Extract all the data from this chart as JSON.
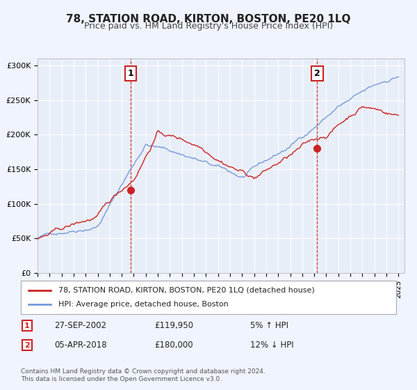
{
  "title": "78, STATION ROAD, KIRTON, BOSTON, PE20 1LQ",
  "subtitle": "Price paid vs. HM Land Registry's House Price Index (HPI)",
  "title_fontsize": 11,
  "subtitle_fontsize": 9,
  "bg_color": "#f0f4ff",
  "plot_bg_color": "#e8eef8",
  "line1_color": "#cc2222",
  "line2_color": "#7799dd",
  "line1_label": "78, STATION ROAD, KIRTON, BOSTON, PE20 1LQ (detached house)",
  "line2_label": "HPI: Average price, detached house, Boston",
  "ylim": [
    0,
    310000
  ],
  "yticks": [
    0,
    50000,
    100000,
    150000,
    200000,
    250000,
    300000
  ],
  "ytick_labels": [
    "£0",
    "£50K",
    "£100K",
    "£150K",
    "£200K",
    "£250K",
    "£300K"
  ],
  "marker1_date": 2002.74,
  "marker1_value": 119950,
  "marker1_label": "1",
  "marker1_date_str": "27-SEP-2002",
  "marker1_price_str": "£119,950",
  "marker1_pct_str": "5% ↑ HPI",
  "marker2_date": 2018.25,
  "marker2_value": 180000,
  "marker2_label": "2",
  "marker2_date_str": "05-APR-2018",
  "marker2_price_str": "£180,000",
  "marker2_pct_str": "12% ↓ HPI",
  "footnote": "Contains HM Land Registry data © Crown copyright and database right 2024.\nThis data is licensed under the Open Government Licence v3.0.",
  "xmin": 1995,
  "xmax": 2025.5
}
